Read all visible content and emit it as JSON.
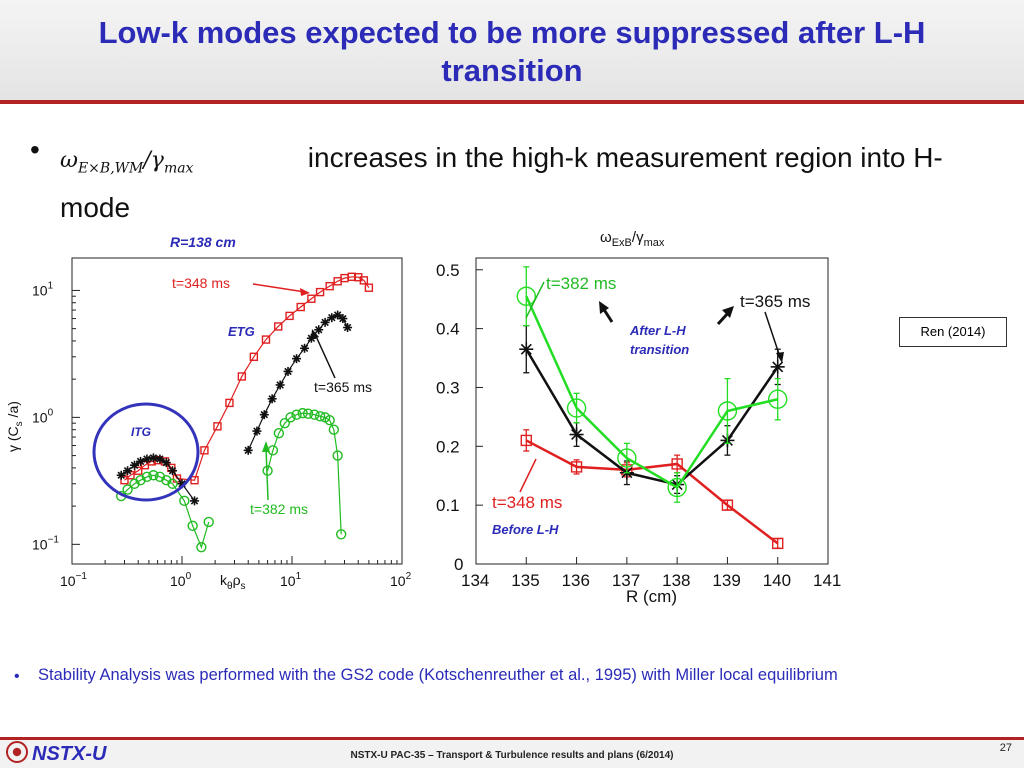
{
  "slide": {
    "title": "Low-k modes expected to be more suppressed after L-H transition",
    "bullet_math": "ωE×B,WM/γmax",
    "bullet_text": "increases in the high-k measurement region into H-mode",
    "citation": "Ren (2014)",
    "bottom_bullet": "Stability Analysis was performed with the GS2 code (Kotschenreuther et al., 1995) with Miller local equilibrium",
    "footer": {
      "logo": "NSTX-U",
      "text": "NSTX-U PAC-35 – Transport & Turbulence results and plans (6/2014)",
      "page": "27"
    }
  },
  "chart_data": [
    {
      "type": "scatter",
      "title": "R=138 cm",
      "xlabel": "kθρs",
      "ylabel": "γ (Cs/a)",
      "xscale": "log",
      "yscale": "log",
      "xlim": [
        0.1,
        100
      ],
      "ylim": [
        0.07,
        18
      ],
      "x_ticks": [
        "10−1",
        "100",
        "101",
        "102"
      ],
      "y_ticks": [
        "10−1",
        "100",
        "101"
      ],
      "annotations": [
        "ETG",
        "ITG",
        "t=348 ms",
        "t=365 ms",
        "t=382 ms"
      ],
      "series": [
        {
          "name": "t=348 ms",
          "color": "#e02020",
          "marker": "square",
          "x": [
            0.3,
            0.34,
            0.4,
            0.46,
            0.53,
            0.6,
            0.7,
            0.8,
            0.9,
            1.3,
            1.6,
            2.1,
            2.7,
            3.5,
            4.5,
            5.8,
            7.5,
            9.5,
            12,
            15,
            18,
            22,
            26,
            30,
            35,
            40,
            45,
            50
          ],
          "y": [
            0.32,
            0.35,
            0.38,
            0.42,
            0.45,
            0.46,
            0.45,
            0.4,
            0.33,
            0.32,
            0.55,
            0.85,
            1.3,
            2.1,
            3.0,
            4.1,
            5.2,
            6.3,
            7.4,
            8.6,
            9.7,
            10.8,
            11.8,
            12.5,
            12.8,
            12.7,
            12.0,
            10.5
          ]
        },
        {
          "name": "t=365 ms",
          "color": "#111111",
          "marker": "star",
          "x": [
            0.28,
            0.32,
            0.37,
            0.42,
            0.48,
            0.55,
            0.63,
            0.72,
            0.82,
            1.0,
            1.3,
            4.0,
            4.8,
            5.6,
            6.6,
            7.8,
            9.2,
            11,
            13,
            15,
            17.5,
            20,
            23,
            26,
            29,
            32
          ],
          "y": [
            0.35,
            0.38,
            0.42,
            0.45,
            0.47,
            0.48,
            0.47,
            0.44,
            0.38,
            0.3,
            0.22,
            0.55,
            0.78,
            1.05,
            1.4,
            1.8,
            2.3,
            2.9,
            3.5,
            4.2,
            4.9,
            5.6,
            6.1,
            6.4,
            6.0,
            5.1
          ]
        },
        {
          "name": "t=382 ms",
          "color": "#22bb22",
          "marker": "circle",
          "x": [
            0.28,
            0.32,
            0.37,
            0.42,
            0.48,
            0.55,
            0.63,
            0.72,
            0.82,
            1.05,
            1.25,
            1.5,
            1.75,
            6.0,
            6.7,
            7.6,
            8.6,
            9.7,
            11,
            12.5,
            14,
            16,
            18,
            20,
            22,
            24,
            26,
            28
          ],
          "y": [
            0.24,
            0.27,
            0.3,
            0.32,
            0.34,
            0.35,
            0.34,
            0.32,
            0.3,
            0.22,
            0.14,
            0.095,
            0.15,
            0.38,
            0.55,
            0.75,
            0.9,
            1.0,
            1.05,
            1.08,
            1.07,
            1.05,
            1.02,
            1.0,
            0.95,
            0.8,
            0.5,
            0.12
          ]
        }
      ]
    },
    {
      "type": "line",
      "title": "ωExB/γmax",
      "xlabel": "R (cm)",
      "ylabel": "",
      "xlim": [
        134,
        141
      ],
      "ylim": [
        0,
        0.52
      ],
      "x_ticks": [
        134,
        135,
        136,
        137,
        138,
        139,
        140,
        141
      ],
      "y_ticks": [
        0,
        0.1,
        0.2,
        0.3,
        0.4,
        0.5
      ],
      "annotations": [
        "t=382 ms",
        "t=365 ms",
        "t=348 ms",
        "After L-H transition",
        "Before L-H"
      ],
      "series": [
        {
          "name": "t=348 ms",
          "color": "#e02020",
          "marker": "square",
          "x": [
            135,
            136,
            137,
            138,
            139,
            140
          ],
          "y": [
            0.21,
            0.165,
            0.16,
            0.17,
            0.1,
            0.035
          ]
        },
        {
          "name": "t=365 ms",
          "color": "#111111",
          "marker": "star",
          "x": [
            135,
            136,
            137,
            138,
            139,
            140
          ],
          "y": [
            0.365,
            0.22,
            0.155,
            0.135,
            0.21,
            0.335
          ]
        },
        {
          "name": "t=382 ms",
          "color": "#22dd22",
          "marker": "circle",
          "x": [
            135,
            136,
            137,
            138,
            139,
            140
          ],
          "y": [
            0.455,
            0.265,
            0.18,
            0.13,
            0.26,
            0.28
          ]
        }
      ]
    }
  ]
}
